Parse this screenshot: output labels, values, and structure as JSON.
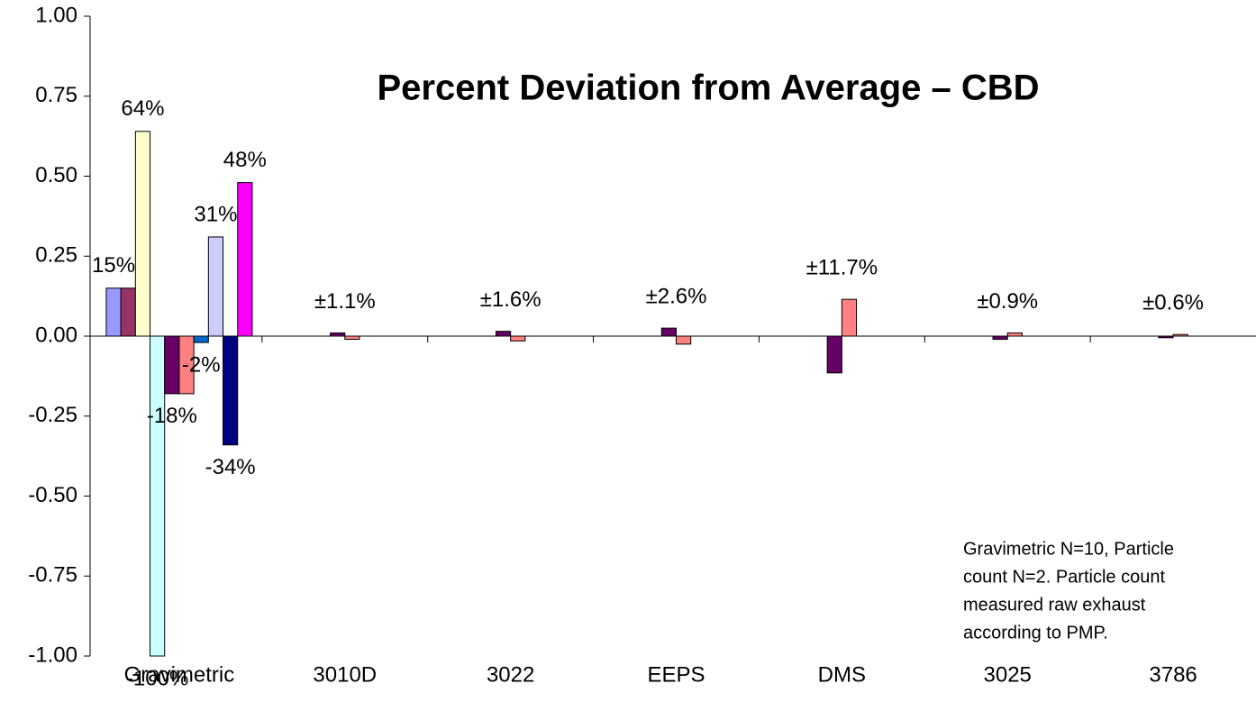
{
  "chart_data": {
    "type": "bar",
    "title": "Percent Deviation from Average – CBD",
    "categories": [
      "Gravimetric",
      "3010D",
      "3022",
      "EEPS",
      "DMS",
      "3025",
      "3786"
    ],
    "series": [
      {
        "color": "#9999ff",
        "values": [
          0.15,
          null,
          null,
          null,
          null,
          null,
          null
        ],
        "value_labels": [
          "15%",
          null,
          null,
          null,
          null,
          null,
          null
        ]
      },
      {
        "color": "#993366",
        "values": [
          0.15,
          null,
          null,
          null,
          null,
          null,
          null
        ]
      },
      {
        "color": "#ffffcc",
        "values": [
          0.64,
          null,
          null,
          null,
          null,
          null,
          null
        ],
        "value_labels": [
          "64%",
          null,
          null,
          null,
          null,
          null,
          null
        ]
      },
      {
        "color": "#ccffff",
        "values": [
          -1.0,
          null,
          null,
          null,
          null,
          null,
          null
        ],
        "value_labels": [
          "-100%",
          null,
          null,
          null,
          null,
          null,
          null
        ]
      },
      {
        "color": "#660066",
        "values": [
          -0.18,
          0.01,
          0.015,
          0.025,
          -0.115,
          -0.01,
          -0.005
        ],
        "value_labels": [
          "-18%",
          null,
          null,
          null,
          null,
          null,
          null
        ]
      },
      {
        "color": "#ff8080",
        "values": [
          -0.18,
          -0.01,
          -0.015,
          -0.025,
          0.115,
          0.01,
          0.005
        ]
      },
      {
        "color": "#0066cc",
        "values": [
          -0.02,
          null,
          null,
          null,
          null,
          null,
          null
        ],
        "value_labels": [
          "-2%",
          null,
          null,
          null,
          null,
          null,
          null
        ]
      },
      {
        "color": "#ccccff",
        "values": [
          0.31,
          null,
          null,
          null,
          null,
          null,
          null
        ],
        "value_labels": [
          "31%",
          null,
          null,
          null,
          null,
          null,
          null
        ]
      },
      {
        "color": "#000080",
        "values": [
          -0.34,
          null,
          null,
          null,
          null,
          null,
          null
        ],
        "value_labels": [
          "-34%",
          null,
          null,
          null,
          null,
          null,
          null
        ]
      },
      {
        "color": "#ff00ff",
        "values": [
          0.48,
          null,
          null,
          null,
          null,
          null,
          null
        ],
        "value_labels": [
          "48%",
          null,
          null,
          null,
          null,
          null,
          null
        ]
      }
    ],
    "category_notes": [
      null,
      "±1.1%",
      "±1.6%",
      "±2.6%",
      "±11.7%",
      "±0.9%",
      "±0.6%"
    ],
    "note": [
      "Gravimetric N=10, Particle",
      "count N=2. Particle count",
      "measured raw exhaust",
      "according to PMP."
    ],
    "ylim": [
      -1,
      1
    ],
    "yticks": [
      {
        "value": -1,
        "label": "-1.00"
      },
      -0.75,
      {
        "value": -0.5,
        "label": "-0.50"
      },
      -0.25,
      {
        "value": 0,
        "label": "0.00"
      },
      0.25,
      {
        "value": 0.5,
        "label": "0.50"
      },
      0.75,
      {
        "value": 1,
        "label": "1.00"
      }
    ],
    "grid": false
  }
}
